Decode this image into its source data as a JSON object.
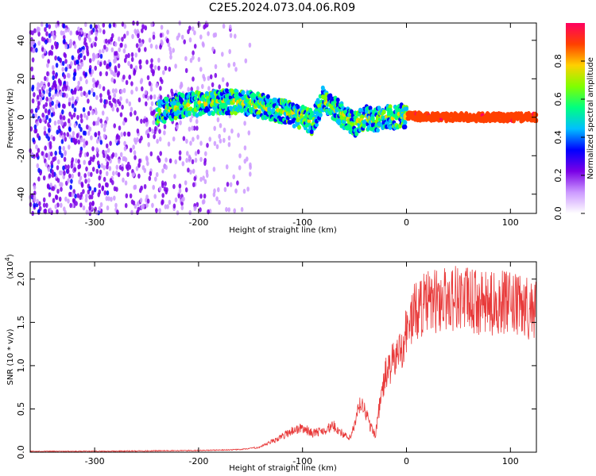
{
  "title": "C2E5.2024.073.04.06.R09",
  "chart_data": [
    {
      "type": "heatmap",
      "xlabel": "Height of straight line (km)",
      "ylabel": "Frequency (Hz)",
      "xlim": [
        -362,
        125
      ],
      "ylim": [
        -50,
        49
      ],
      "xticks": [
        -300,
        -200,
        -100,
        0,
        100
      ],
      "yticks": [
        -40,
        -20,
        0,
        20,
        40
      ],
      "colorbar": {
        "label": "Normalized spectral amplitude",
        "range": [
          0,
          1
        ],
        "ticks": [
          "0.0",
          "0.2",
          "0.4",
          "0.6",
          "0.8"
        ],
        "colors": [
          "#ffffff",
          "#cc99ff",
          "#7a00e6",
          "#0000ff",
          "#00bfff",
          "#00ff80",
          "#80ff00",
          "#ffd000",
          "#ff4000",
          "#ff0060"
        ]
      },
      "ridge": {
        "x": [
          -240,
          -220,
          -200,
          -180,
          -160,
          -140,
          -120,
          -100,
          -90,
          -80,
          -70,
          -60,
          -50,
          -40,
          -30,
          -20,
          -10,
          0,
          20,
          50,
          80,
          110,
          125
        ],
        "y": [
          2,
          6,
          7,
          8,
          8,
          6,
          3,
          0,
          -3,
          10,
          5,
          0,
          -4,
          0,
          -2,
          1,
          0,
          1,
          0,
          0,
          0,
          0,
          0
        ]
      },
      "noise_region_xlim": [
        -362,
        -150
      ]
    },
    {
      "type": "line",
      "xlabel": "Height of straight line (km)",
      "ylabel": "SNR (10 * v/v)",
      "multiplier": "(x10",
      "multiplier_exp": "4",
      "xlim": [
        -362,
        125
      ],
      "ylim": [
        0,
        2.2
      ],
      "xticks": [
        -300,
        -200,
        -100,
        0,
        100
      ],
      "yticks": [
        "0.0",
        "0.5",
        "1.0",
        "1.5",
        "2.0"
      ],
      "line_color": "#e83a3a",
      "series": [
        {
          "x": [
            -362,
            -300,
            -250,
            -200,
            -160,
            -140,
            -130,
            -120,
            -110,
            -100,
            -90,
            -80,
            -70,
            -60,
            -55,
            -50,
            -45,
            -40,
            -35,
            -30,
            -25,
            -20,
            -15,
            -10,
            -5,
            0,
            5,
            10,
            15,
            20,
            30,
            40,
            50,
            60,
            70,
            80,
            90,
            100,
            110,
            125
          ],
          "y": [
            0.01,
            0.01,
            0.015,
            0.02,
            0.03,
            0.06,
            0.12,
            0.18,
            0.25,
            0.28,
            0.22,
            0.25,
            0.3,
            0.2,
            0.15,
            0.3,
            0.55,
            0.5,
            0.3,
            0.2,
            0.6,
            0.9,
            1.0,
            1.1,
            1.2,
            1.4,
            1.55,
            1.65,
            1.7,
            1.72,
            1.75,
            1.78,
            1.8,
            1.75,
            1.72,
            1.7,
            1.75,
            1.7,
            1.68,
            1.66
          ]
        }
      ]
    }
  ]
}
